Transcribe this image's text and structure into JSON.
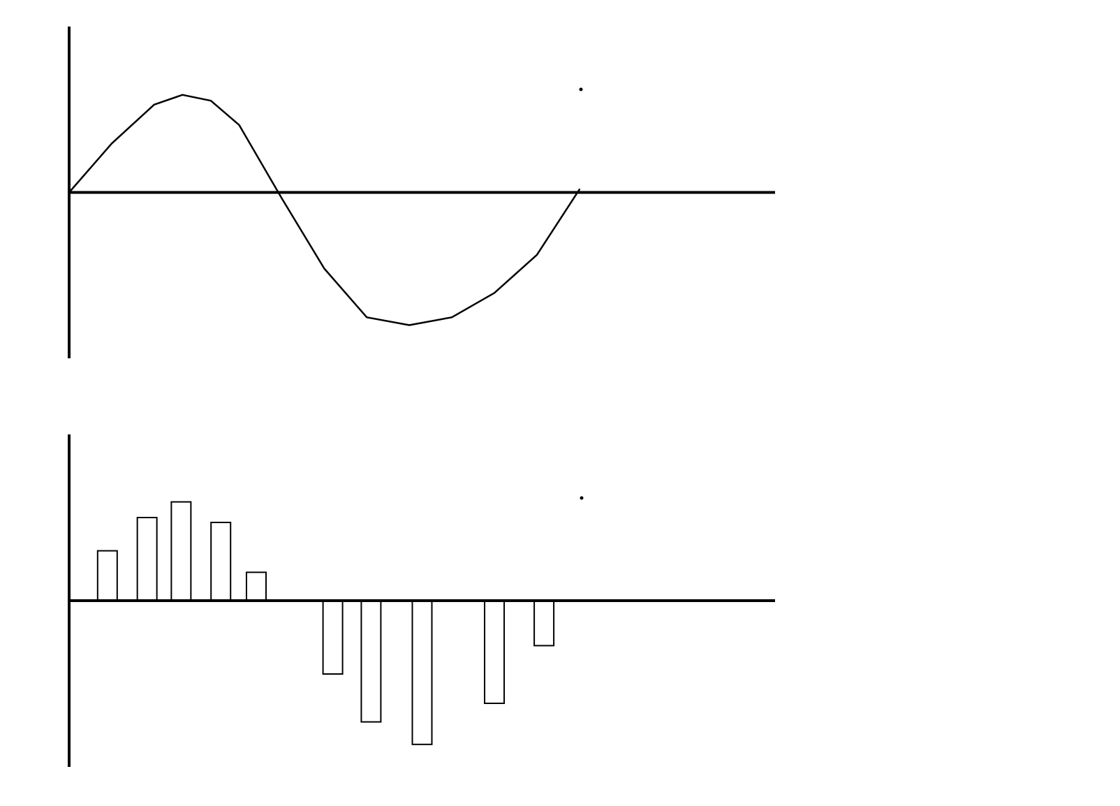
{
  "chart_data": [
    {
      "type": "line",
      "color": "#000000",
      "x": [
        0,
        30,
        60,
        80,
        100,
        120,
        140,
        150,
        180,
        210,
        240,
        270,
        300,
        330,
        360
      ],
      "values": [
        0,
        0.5,
        0.9,
        1.0,
        0.94,
        0.69,
        0.19,
        -0.06,
        -0.78,
        -1.28,
        -1.36,
        -1.28,
        -1.03,
        -0.64,
        0.03
      ],
      "xlim": [
        0,
        498
      ],
      "ylim": [
        -1.7,
        1.7
      ]
    },
    {
      "type": "bar",
      "color": "#000000",
      "x": [
        27,
        55,
        79,
        107,
        132,
        186,
        213,
        249,
        300,
        335
      ],
      "values": [
        0.51,
        0.85,
        1.01,
        0.8,
        0.29,
        -0.75,
        -1.24,
        -1.47,
        -1.05,
        -0.46
      ],
      "xlim": [
        0,
        498
      ],
      "ylim": [
        -1.7,
        1.7
      ]
    }
  ]
}
